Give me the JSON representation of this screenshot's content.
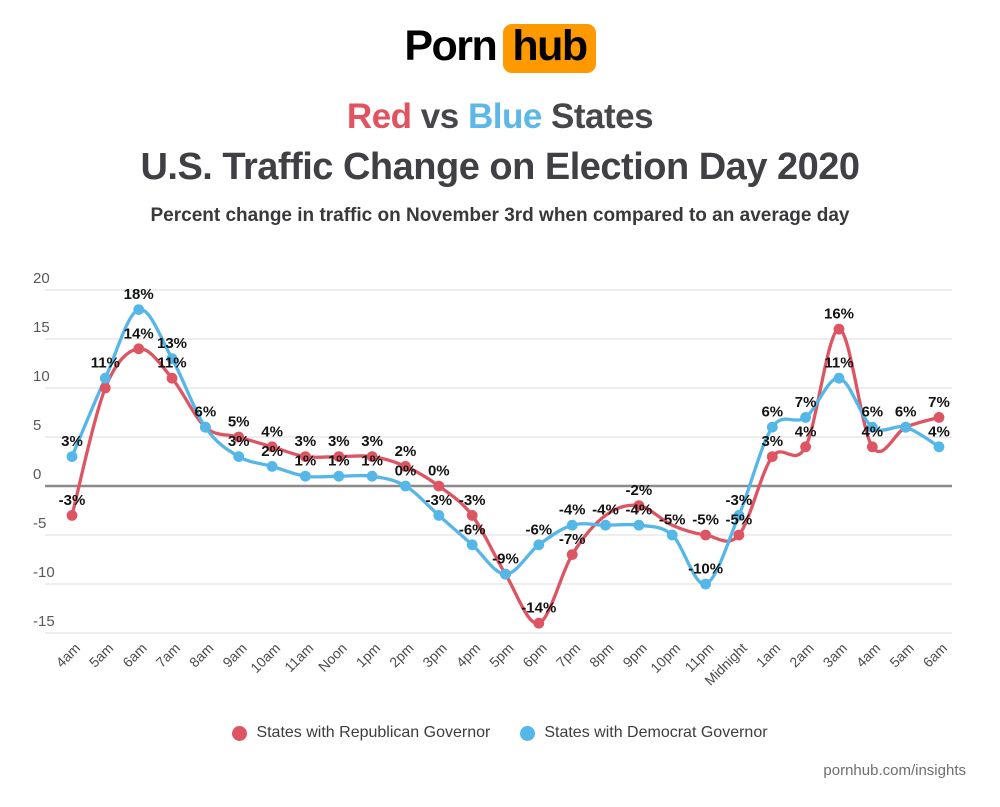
{
  "logo": {
    "part1": "Porn",
    "part2": "hub"
  },
  "header": {
    "word_red": "Red",
    "word_vs": " vs ",
    "word_blue": "Blue",
    "word_states": " States",
    "main_title": "U.S. Traffic Change on Election Day 2020",
    "subtitle": "Percent change in traffic on November 3rd when compared to an average day"
  },
  "colors": {
    "republican_red": "#dd5563",
    "democrat_blue": "#55b6e8",
    "brand_orange": "#ff9900",
    "grid_line": "#e4e4e4",
    "zero_line": "#8a8a8a",
    "label_black": "#131313",
    "axis_text": "#57585a"
  },
  "chart_data": {
    "type": "line",
    "title": "Red vs Blue States — U.S. Traffic Change on Election Day 2020",
    "xlabel": "",
    "ylabel": "Percent change in traffic (%)",
    "ylim": [
      -15,
      20
    ],
    "y_ticks": [
      20,
      15,
      10,
      5,
      0,
      -5,
      -10,
      -15
    ],
    "grid": true,
    "legend_position": "bottom",
    "categories": [
      "4am",
      "5am",
      "6am",
      "7am",
      "8am",
      "9am",
      "10am",
      "11am",
      "Noon",
      "1pm",
      "2pm",
      "3pm",
      "4pm",
      "5pm",
      "6pm",
      "7pm",
      "8pm",
      "9pm",
      "10pm",
      "11pm",
      "Midnight",
      "1am",
      "2am",
      "3am",
      "4am",
      "5am",
      "6am"
    ],
    "series": [
      {
        "name": "States with Republican Governor",
        "color": "#dd5563",
        "values": [
          -3,
          10,
          14,
          11,
          6,
          5,
          4,
          3,
          3,
          3,
          2,
          0,
          -3,
          -9,
          -14,
          -7,
          -3,
          -2,
          -4,
          -5,
          -5,
          3,
          4,
          16,
          4,
          6,
          7
        ],
        "labels": [
          "-3%",
          "",
          "14%",
          "11%",
          "",
          "5%",
          "4%",
          "3%",
          "3%",
          "3%",
          "2%",
          "0%",
          "-3%",
          "",
          "-14%",
          "-7%",
          "",
          "-2%",
          "",
          "-5%",
          "-5%",
          "3%",
          "4%",
          "16%",
          "4%",
          "",
          "7%"
        ],
        "dots": [
          1,
          1,
          1,
          1,
          1,
          1,
          1,
          1,
          1,
          1,
          1,
          1,
          1,
          1,
          1,
          1,
          0,
          1,
          0,
          1,
          1,
          1,
          1,
          1,
          1,
          1,
          1
        ]
      },
      {
        "name": "States with Democrat Governor",
        "color": "#55b6e8",
        "values": [
          3,
          11,
          18,
          13,
          6,
          3,
          2,
          1,
          1,
          1,
          0,
          -3,
          -6,
          -9,
          -6,
          -4,
          -4,
          -4,
          -5,
          -10,
          -3,
          6,
          7,
          11,
          6,
          6,
          4
        ],
        "labels": [
          "3%",
          "11%",
          "18%",
          "13%",
          "6%",
          "3%",
          "2%",
          "1%",
          "1%",
          "1%",
          "0%",
          "-3%",
          "-6%",
          "-9%",
          "-6%",
          "-4%",
          "-4%",
          "-4%",
          "-5%",
          "-10%",
          "-3%",
          "6%",
          "7%",
          "11%",
          "6%",
          "6%",
          "4%"
        ],
        "dots": [
          1,
          1,
          1,
          1,
          1,
          1,
          1,
          1,
          1,
          1,
          1,
          1,
          1,
          1,
          1,
          1,
          1,
          1,
          1,
          1,
          1,
          1,
          1,
          1,
          1,
          1,
          1
        ]
      }
    ]
  },
  "legend": {
    "items": [
      {
        "label": "States with Republican Governor",
        "color": "#dd5563"
      },
      {
        "label": "States with Democrat Governor",
        "color": "#55b6e8"
      }
    ]
  },
  "footer": {
    "link": "pornhub.com/insights"
  }
}
